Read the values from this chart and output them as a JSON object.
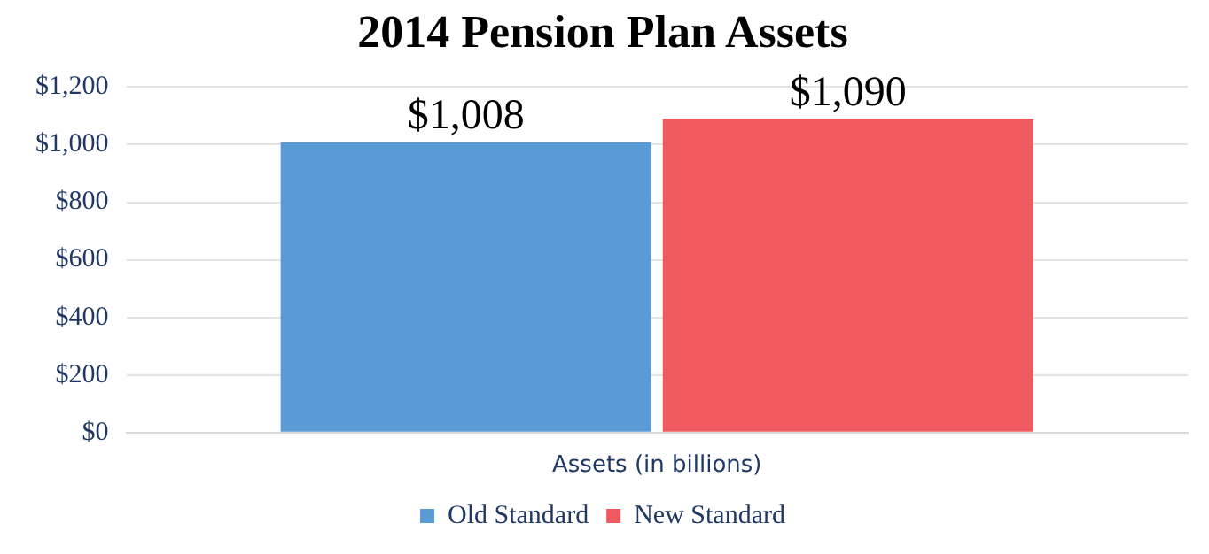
{
  "chart_data": {
    "type": "bar",
    "title": "2014 Pension Plan Assets",
    "categories": [
      "Assets (in billions)"
    ],
    "series": [
      {
        "name": "Old Standard",
        "color": "#5b9bd5",
        "values": [
          1008
        ]
      },
      {
        "name": "New Standard",
        "color": "#ee5a5f",
        "values": [
          1090
        ]
      }
    ],
    "ylim": [
      0,
      1200
    ],
    "yticks": [
      {
        "value": 0,
        "label": "$0"
      },
      {
        "value": 200,
        "label": "$200"
      },
      {
        "value": 400,
        "label": "$400"
      },
      {
        "value": 600,
        "label": "$600"
      },
      {
        "value": 800,
        "label": "$800"
      },
      {
        "value": 1000,
        "label": "$1,000"
      },
      {
        "value": 1200,
        "label": "$1,200"
      }
    ],
    "value_labels": [
      [
        "$1,008"
      ],
      [
        "$1,090"
      ]
    ],
    "grid": "y",
    "legend": "bottom"
  }
}
